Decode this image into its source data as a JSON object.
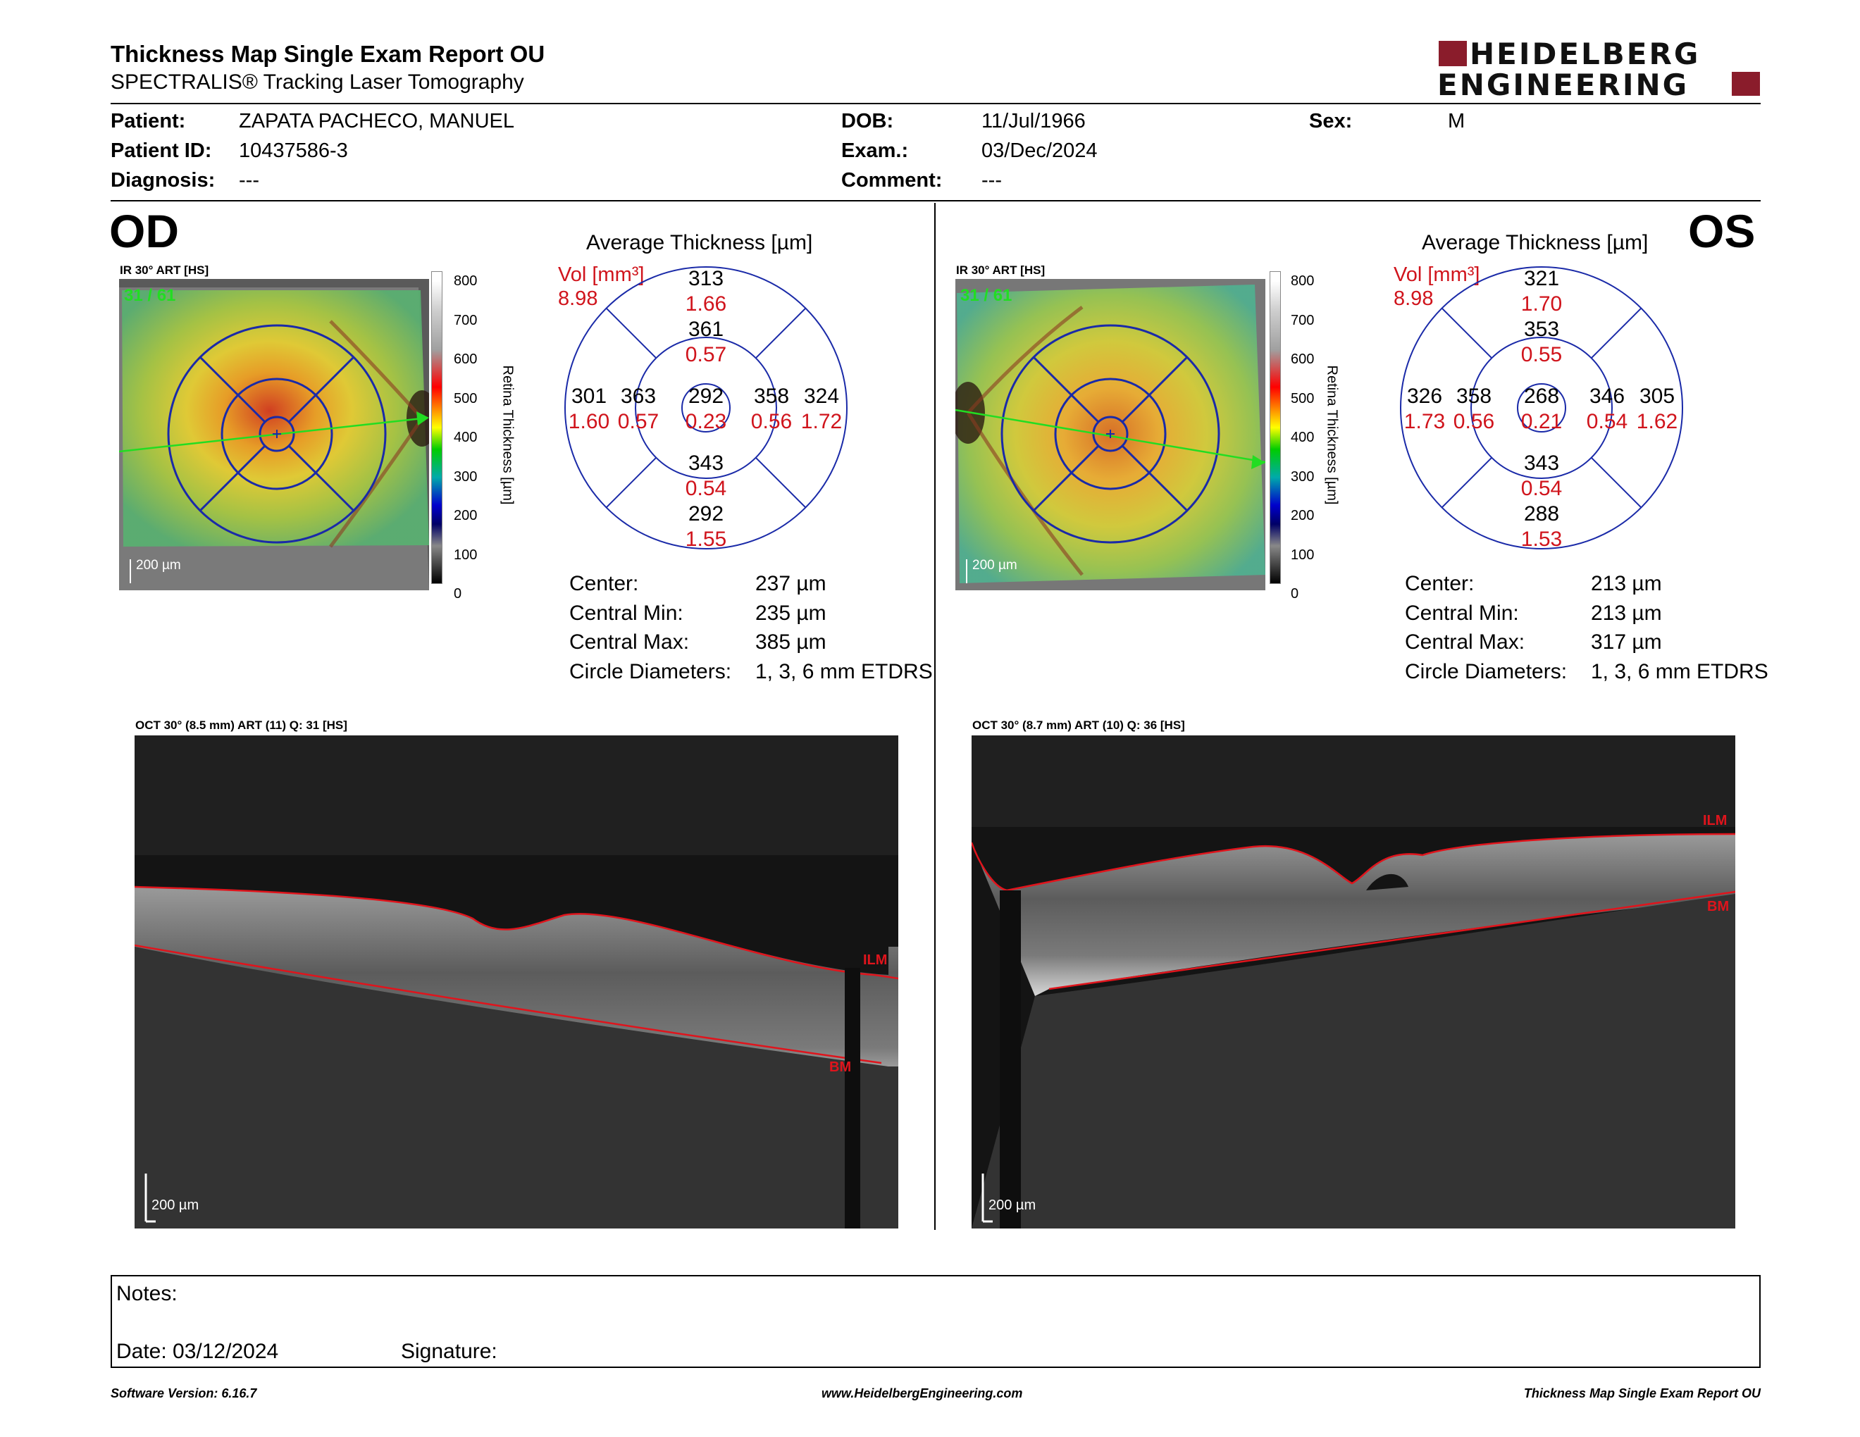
{
  "header": {
    "title": "Thickness Map Single Exam Report OU",
    "subtitle": "SPECTRALIS® Tracking Laser Tomography",
    "logo_line1": "HEIDELBERG",
    "logo_line2": "ENGINEERING"
  },
  "patient": {
    "patient_label": "Patient:",
    "patient_value": "ZAPATA PACHECO, MANUEL",
    "id_label": "Patient ID:",
    "id_value": "10437586-3",
    "diagnosis_label": "Diagnosis:",
    "diagnosis_value": "---",
    "dob_label": "DOB:",
    "dob_value": "11/Jul/1966",
    "exam_label": "Exam.:",
    "exam_value": "03/Dec/2024",
    "comment_label": "Comment:",
    "comment_value": "---",
    "sex_label": "Sex:",
    "sex_value": "M"
  },
  "colorbar": {
    "ticks": [
      "800",
      "700",
      "600",
      "500",
      "400",
      "300",
      "200",
      "100",
      "0"
    ],
    "label": "Retina Thickness [µm]"
  },
  "od": {
    "eye": "OD",
    "ir_caption": "IR 30° ART [HS]",
    "frame": "31 / 61",
    "scale": "200 µm",
    "avg_title": "Average Thickness [µm]",
    "vol_label": "Vol [mm³]",
    "vol_value": "8.98",
    "grid": {
      "center": {
        "t": "292",
        "v": "0.23"
      },
      "inner_sup": {
        "t": "361",
        "v": "0.57"
      },
      "inner_inf": {
        "t": "343",
        "v": "0.54"
      },
      "inner_left": {
        "t": "363",
        "v": "0.57"
      },
      "inner_right": {
        "t": "358",
        "v": "0.56"
      },
      "outer_sup": {
        "t": "313",
        "v": "1.66"
      },
      "outer_inf": {
        "t": "292",
        "v": "1.55"
      },
      "outer_left": {
        "t": "301",
        "v": "1.60"
      },
      "outer_right": {
        "t": "324",
        "v": "1.72"
      }
    },
    "stats": [
      {
        "label": "Center:",
        "value": "237 µm"
      },
      {
        "label": "Central Min:",
        "value": "235 µm"
      },
      {
        "label": "Central Max:",
        "value": "385 µm"
      },
      {
        "label": "Circle Diameters:",
        "value": "1, 3, 6 mm ETDRS"
      }
    ],
    "oct_caption": "OCT 30° (8.5 mm) ART (11) Q: 31 [HS]",
    "ilm": "ILM",
    "bm": "BM",
    "oct_scale": "200 µm"
  },
  "os": {
    "eye": "OS",
    "ir_caption": "IR 30° ART [HS]",
    "frame": "31 / 61",
    "scale": "200 µm",
    "avg_title": "Average Thickness [µm]",
    "vol_label": "Vol [mm³]",
    "vol_value": "8.98",
    "grid": {
      "center": {
        "t": "268",
        "v": "0.21"
      },
      "inner_sup": {
        "t": "353",
        "v": "0.55"
      },
      "inner_inf": {
        "t": "343",
        "v": "0.54"
      },
      "inner_left": {
        "t": "358",
        "v": "0.56"
      },
      "inner_right": {
        "t": "346",
        "v": "0.54"
      },
      "outer_sup": {
        "t": "321",
        "v": "1.70"
      },
      "outer_inf": {
        "t": "288",
        "v": "1.53"
      },
      "outer_left": {
        "t": "326",
        "v": "1.73"
      },
      "outer_right": {
        "t": "305",
        "v": "1.62"
      }
    },
    "stats": [
      {
        "label": "Center:",
        "value": "213 µm"
      },
      {
        "label": "Central Min:",
        "value": "213 µm"
      },
      {
        "label": "Central Max:",
        "value": "317 µm"
      },
      {
        "label": "Circle Diameters:",
        "value": "1, 3, 6 mm ETDRS"
      }
    ],
    "oct_caption": "OCT 30° (8.7 mm) ART (10) Q: 36 [HS]",
    "ilm": "ILM",
    "bm": "BM",
    "oct_scale": "200 µm"
  },
  "notes": {
    "notes_label": "Notes:",
    "date_label": "Date: 03/12/2024",
    "signature_label": "Signature:"
  },
  "footer": {
    "left": "Software Version: 6.16.7",
    "center": "www.HeidelbergEngineering.com",
    "right": "Thickness Map Single Exam Report OU"
  },
  "colors": {
    "logo": "#8a1c2b",
    "grid_blue": "#1a2aa8",
    "volume_red": "#d0141c",
    "segmentation_red": "#e0141c",
    "frame_green": "#22dd22"
  }
}
